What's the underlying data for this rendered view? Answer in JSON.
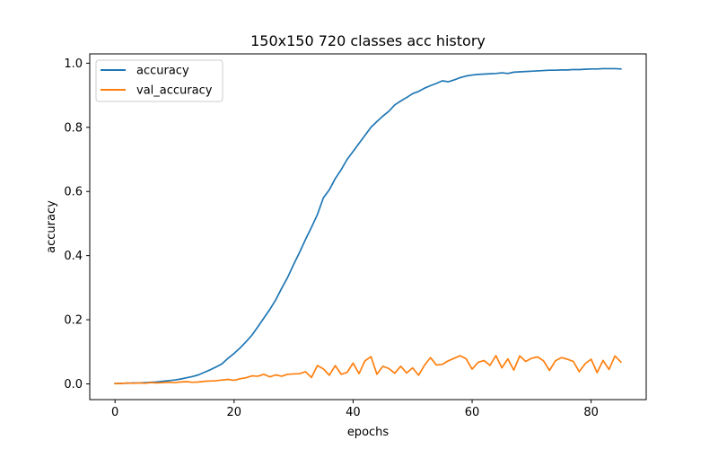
{
  "chart_data": {
    "type": "line",
    "title": "150x150 720 classes acc history",
    "xlabel": "epochs",
    "ylabel": "accuracy",
    "xlim": [
      -4.25,
      89.25
    ],
    "ylim": [
      -0.049,
      1.029
    ],
    "x_ticks": [
      0,
      20,
      40,
      60,
      80
    ],
    "y_ticks": [
      0.0,
      0.2,
      0.4,
      0.6,
      0.8,
      1.0
    ],
    "x_tick_labels": [
      "0",
      "20",
      "40",
      "60",
      "80"
    ],
    "y_tick_labels": [
      "0.0",
      "0.2",
      "0.4",
      "0.6",
      "0.8",
      "1.0"
    ],
    "grid": false,
    "legend_position": "top-left",
    "x": [
      0,
      1,
      2,
      3,
      4,
      5,
      6,
      7,
      8,
      9,
      10,
      11,
      12,
      13,
      14,
      15,
      16,
      17,
      18,
      19,
      20,
      21,
      22,
      23,
      24,
      25,
      26,
      27,
      28,
      29,
      30,
      31,
      32,
      33,
      34,
      35,
      36,
      37,
      38,
      39,
      40,
      41,
      42,
      43,
      44,
      45,
      46,
      47,
      48,
      49,
      50,
      51,
      52,
      53,
      54,
      55,
      56,
      57,
      58,
      59,
      60,
      61,
      62,
      63,
      64,
      65,
      66,
      67,
      68,
      69,
      70,
      71,
      72,
      73,
      74,
      75,
      76,
      77,
      78,
      79,
      80,
      81,
      82,
      83,
      84,
      85
    ],
    "series": [
      {
        "name": "accuracy",
        "color": "#1f77b4",
        "values": [
          0.001,
          0.002,
          0.002,
          0.003,
          0.003,
          0.004,
          0.005,
          0.006,
          0.008,
          0.01,
          0.012,
          0.015,
          0.019,
          0.023,
          0.028,
          0.036,
          0.044,
          0.053,
          0.063,
          0.08,
          0.095,
          0.112,
          0.131,
          0.152,
          0.178,
          0.205,
          0.232,
          0.262,
          0.298,
          0.332,
          0.372,
          0.41,
          0.45,
          0.488,
          0.528,
          0.58,
          0.605,
          0.64,
          0.668,
          0.7,
          0.725,
          0.75,
          0.775,
          0.8,
          0.818,
          0.835,
          0.85,
          0.87,
          0.882,
          0.893,
          0.905,
          0.912,
          0.922,
          0.93,
          0.937,
          0.945,
          0.942,
          0.948,
          0.955,
          0.96,
          0.963,
          0.965,
          0.966,
          0.967,
          0.968,
          0.97,
          0.968,
          0.972,
          0.973,
          0.974,
          0.975,
          0.976,
          0.977,
          0.978,
          0.978,
          0.979,
          0.979,
          0.98,
          0.98,
          0.981,
          0.982,
          0.982,
          0.983,
          0.983,
          0.983,
          0.982
        ]
      },
      {
        "name": "val_accuracy",
        "color": "#ff7f0e",
        "values": [
          0.001,
          0.001,
          0.003,
          0.002,
          0.003,
          0.002,
          0.004,
          0.003,
          0.004,
          0.005,
          0.004,
          0.006,
          0.007,
          0.005,
          0.006,
          0.008,
          0.009,
          0.01,
          0.012,
          0.014,
          0.011,
          0.016,
          0.019,
          0.025,
          0.024,
          0.03,
          0.022,
          0.028,
          0.024,
          0.03,
          0.031,
          0.032,
          0.038,
          0.02,
          0.057,
          0.047,
          0.027,
          0.057,
          0.03,
          0.036,
          0.065,
          0.032,
          0.072,
          0.085,
          0.03,
          0.055,
          0.048,
          0.033,
          0.055,
          0.034,
          0.05,
          0.027,
          0.058,
          0.082,
          0.059,
          0.061,
          0.072,
          0.08,
          0.088,
          0.078,
          0.046,
          0.067,
          0.073,
          0.058,
          0.088,
          0.05,
          0.078,
          0.043,
          0.087,
          0.07,
          0.08,
          0.084,
          0.072,
          0.042,
          0.072,
          0.082,
          0.077,
          0.07,
          0.038,
          0.063,
          0.077,
          0.035,
          0.073,
          0.045,
          0.087,
          0.068
        ]
      }
    ]
  }
}
